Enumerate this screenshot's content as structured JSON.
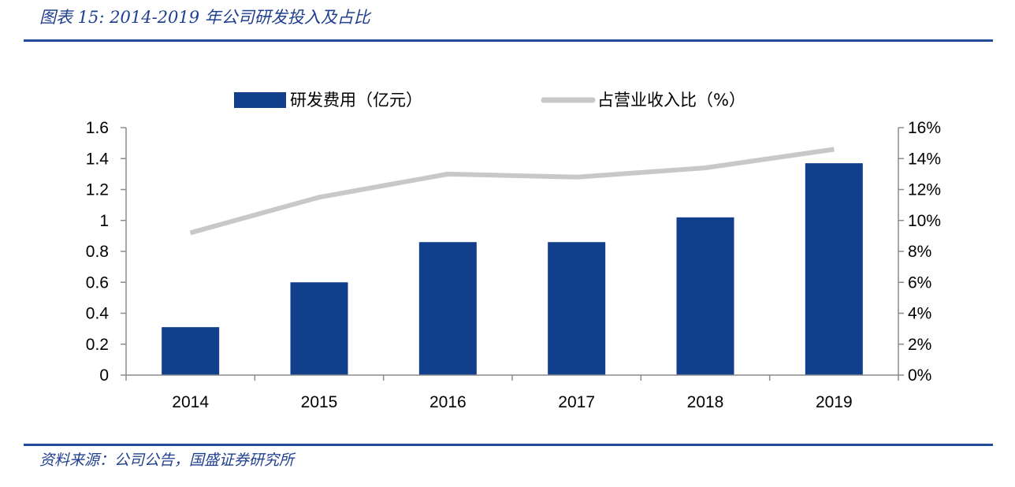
{
  "header": {
    "title": "图表 15:  2014-2019 年公司研发投入及占比"
  },
  "footer": {
    "source": "资料来源：公司公告，国盛证券研究所"
  },
  "colors": {
    "bar": "#123f8c",
    "line": "#c8c8c8",
    "rule": "#1f4b99",
    "axis": "#8c8c8c"
  },
  "chart_data": {
    "type": "bar",
    "categories": [
      "2014",
      "2015",
      "2016",
      "2017",
      "2018",
      "2019"
    ],
    "series": [
      {
        "name": "研发费用（亿元）",
        "type": "bar",
        "axis": "left",
        "values": [
          0.31,
          0.6,
          0.86,
          0.86,
          1.02,
          1.37
        ]
      },
      {
        "name": "占营业收入比（%）",
        "type": "line",
        "axis": "right",
        "values": [
          9.2,
          11.5,
          13.0,
          12.8,
          13.4,
          14.6
        ]
      }
    ],
    "y_left": {
      "ylim": [
        0,
        1.6
      ],
      "ticks": [
        0,
        0.2,
        0.4,
        0.6,
        0.8,
        1,
        1.2,
        1.4,
        1.6
      ],
      "tick_labels": [
        "0",
        "0.2",
        "0.4",
        "0.6",
        "0.8",
        "1",
        "1.2",
        "1.4",
        "1.6"
      ]
    },
    "y_right": {
      "ylim": [
        0,
        16
      ],
      "ticks": [
        0,
        2,
        4,
        6,
        8,
        10,
        12,
        14,
        16
      ],
      "tick_labels": [
        "0%",
        "2%",
        "4%",
        "6%",
        "8%",
        "10%",
        "12%",
        "14%",
        "16%"
      ]
    },
    "grid": false,
    "legend_position": "top-center"
  }
}
